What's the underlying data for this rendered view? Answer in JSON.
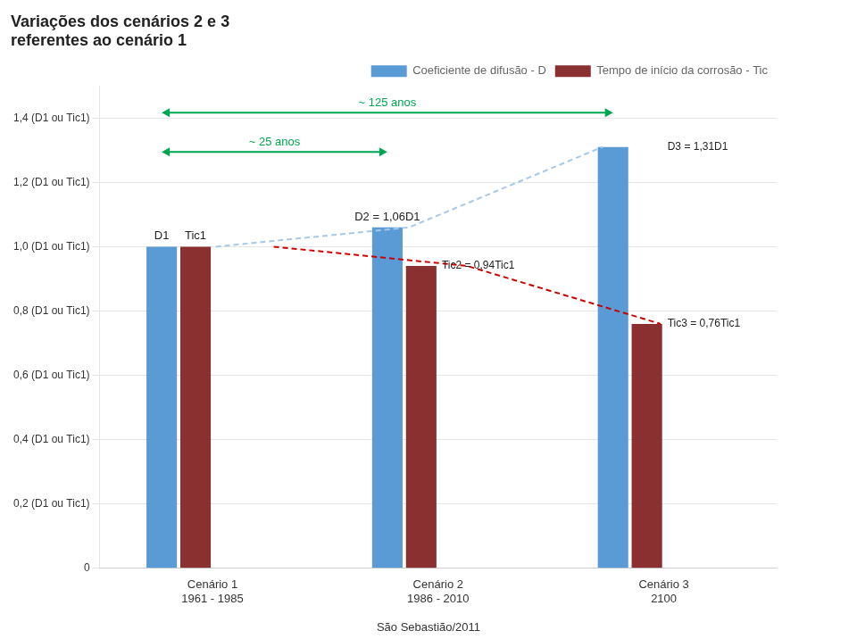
{
  "chart_data": {
    "type": "bar",
    "title": "Variações dos cenários 2 e 3\nreferentes ao cenário 1",
    "categories": [
      "Cenário 1\n1961 - 1985",
      "Cenário 2\n1986 - 2010",
      "Cenário 3\n2100"
    ],
    "series": [
      {
        "name": "Coeficiente de difusão - D",
        "color": "#5B9BD5",
        "values": [
          1.0,
          1.06,
          1.31
        ]
      },
      {
        "name": "Tempo de início da corrosão - Tic",
        "color": "#8B3030",
        "values": [
          1.0,
          0.94,
          0.76
        ]
      },
      {
        "type": "line",
        "line_style": "dashed",
        "color": "#A8C8E8",
        "values": [
          1.0,
          1.06,
          1.31
        ]
      },
      {
        "type": "line",
        "line_style": "dashed",
        "color": "#CC0000",
        "values": [
          1.0,
          0.94,
          0.76
        ]
      }
    ],
    "ylim": [
      0,
      1.5
    ],
    "yticks": [
      0,
      {
        "value": 0.2,
        "label": "0,2 (D1 ou Tic1)"
      },
      {
        "value": 0.4,
        "label": "0,4 (D1 ou Tic1)"
      },
      {
        "value": 0.6,
        "label": "0,6 (D1 ou Tic1)"
      },
      {
        "value": 0.8,
        "label": "0,8 (D1 ou Tic1)"
      },
      {
        "value": 1.0,
        "label": "1,0 (D1 ou Tic1)"
      },
      {
        "value": 1.2,
        "label": "1,2 (D1 ou Tic1)"
      },
      {
        "value": 1.4,
        "label": "1,4 (D1 ou Tic1)"
      }
    ],
    "grid": true,
    "legend": "upper right",
    "annotations": [
      {
        "text": "D1"
      },
      {
        "text": "Tic1"
      },
      {
        "text": "D2 = 1,06D1"
      },
      {
        "text": "Tic2 = 0,94Tic1"
      },
      {
        "text": "D3 = 1,31D1"
      },
      {
        "text": "Tic3 = 0,76Tic1"
      },
      {
        "text": "~ 125 anos",
        "color": "#00A550"
      },
      {
        "text": "~ 25 anos",
        "color": "#00A550"
      },
      {
        "text": "São Sebastião/2011"
      }
    ]
  }
}
